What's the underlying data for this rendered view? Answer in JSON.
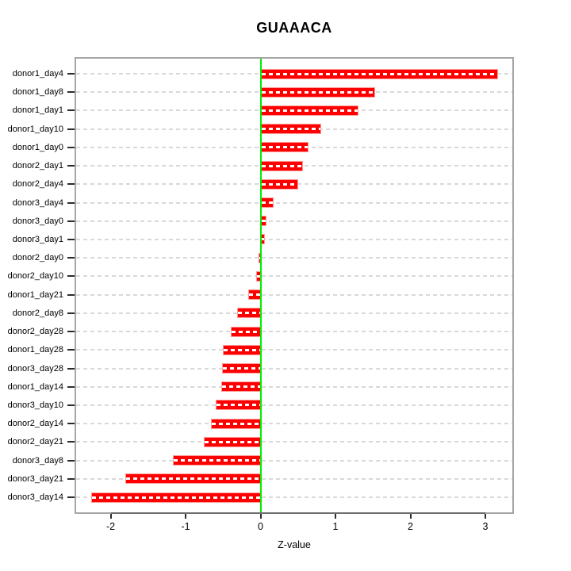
{
  "title": "GUAAACA",
  "x_axis": {
    "label": "Z-value",
    "ticks": [
      "-2",
      "-1",
      "0",
      "1",
      "2",
      "3"
    ]
  },
  "colors": {
    "bar": "#fe0000",
    "bar_edge": "#ff9a9a",
    "bar_center_dash": "#ffffff",
    "zero_line": "#00ee00",
    "grid": "#d9d9d9",
    "box": "#a6a6a6",
    "axis_line": "#6f6f6f",
    "tick": "#2b2b2b",
    "text": "#000000",
    "background": "#ffffff"
  },
  "chart_data": {
    "type": "bar",
    "orientation": "horizontal",
    "title": "GUAAACA",
    "xlabel": "Z-value",
    "ylabel": "",
    "categories": [
      "donor1_day4",
      "donor1_day8",
      "donor1_day1",
      "donor1_day10",
      "donor1_day0",
      "donor2_day1",
      "donor2_day4",
      "donor3_day4",
      "donor3_day0",
      "donor3_day1",
      "donor2_day0",
      "donor2_day10",
      "donor1_day21",
      "donor2_day8",
      "donor2_day28",
      "donor1_day28",
      "donor3_day28",
      "donor1_day14",
      "donor3_day10",
      "donor2_day14",
      "donor2_day21",
      "donor3_day8",
      "donor3_day21",
      "donor3_day14"
    ],
    "values": [
      3.15,
      1.51,
      1.28,
      0.79,
      0.62,
      0.54,
      0.48,
      0.15,
      0.06,
      0.04,
      -0.03,
      -0.06,
      -0.16,
      -0.31,
      -0.4,
      -0.5,
      -0.51,
      -0.52,
      -0.6,
      -0.66,
      -0.76,
      -1.17,
      -1.8,
      -2.26
    ],
    "xlim": [
      -2.46,
      3.36
    ],
    "xticks": [
      -2,
      -1,
      0,
      1,
      2,
      3
    ],
    "grid": "horizontal-dashed-per-category",
    "zero_line_x": 0,
    "sorted": "descending",
    "legend": "none"
  }
}
